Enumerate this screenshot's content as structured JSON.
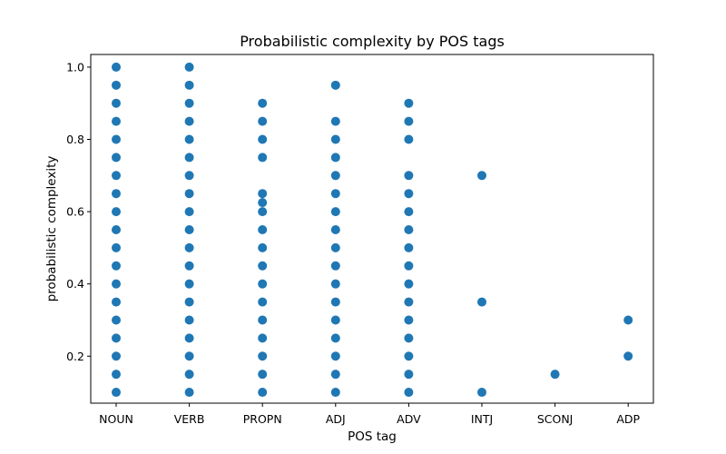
{
  "chart_data": {
    "type": "scatter",
    "title": "Probabilistic complexity by POS tags",
    "xlabel": "POS tag",
    "ylabel": "probabilistic complexity",
    "categories": [
      "NOUN",
      "VERB",
      "PROPN",
      "ADJ",
      "ADV",
      "INTJ",
      "SCONJ",
      "ADP"
    ],
    "ylim": [
      0.07,
      1.035
    ],
    "yticks": [
      "0.2",
      "0.4",
      "0.6",
      "0.8",
      "1.0"
    ],
    "grid": false,
    "color": "#1f77b4",
    "series": [
      {
        "points": [
          {
            "x": "NOUN",
            "y": 0.1
          },
          {
            "x": "NOUN",
            "y": 0.15
          },
          {
            "x": "NOUN",
            "y": 0.2
          },
          {
            "x": "NOUN",
            "y": 0.25
          },
          {
            "x": "NOUN",
            "y": 0.3
          },
          {
            "x": "NOUN",
            "y": 0.35
          },
          {
            "x": "NOUN",
            "y": 0.4
          },
          {
            "x": "NOUN",
            "y": 0.45
          },
          {
            "x": "NOUN",
            "y": 0.5
          },
          {
            "x": "NOUN",
            "y": 0.55
          },
          {
            "x": "NOUN",
            "y": 0.6
          },
          {
            "x": "NOUN",
            "y": 0.65
          },
          {
            "x": "NOUN",
            "y": 0.7
          },
          {
            "x": "NOUN",
            "y": 0.75
          },
          {
            "x": "NOUN",
            "y": 0.8
          },
          {
            "x": "NOUN",
            "y": 0.85
          },
          {
            "x": "NOUN",
            "y": 0.9
          },
          {
            "x": "NOUN",
            "y": 0.95
          },
          {
            "x": "NOUN",
            "y": 1.0
          },
          {
            "x": "VERB",
            "y": 0.1
          },
          {
            "x": "VERB",
            "y": 0.15
          },
          {
            "x": "VERB",
            "y": 0.2
          },
          {
            "x": "VERB",
            "y": 0.25
          },
          {
            "x": "VERB",
            "y": 0.3
          },
          {
            "x": "VERB",
            "y": 0.35
          },
          {
            "x": "VERB",
            "y": 0.4
          },
          {
            "x": "VERB",
            "y": 0.45
          },
          {
            "x": "VERB",
            "y": 0.5
          },
          {
            "x": "VERB",
            "y": 0.55
          },
          {
            "x": "VERB",
            "y": 0.6
          },
          {
            "x": "VERB",
            "y": 0.65
          },
          {
            "x": "VERB",
            "y": 0.7
          },
          {
            "x": "VERB",
            "y": 0.75
          },
          {
            "x": "VERB",
            "y": 0.8
          },
          {
            "x": "VERB",
            "y": 0.85
          },
          {
            "x": "VERB",
            "y": 0.9
          },
          {
            "x": "VERB",
            "y": 0.95
          },
          {
            "x": "VERB",
            "y": 1.0
          },
          {
            "x": "PROPN",
            "y": 0.1
          },
          {
            "x": "PROPN",
            "y": 0.15
          },
          {
            "x": "PROPN",
            "y": 0.2
          },
          {
            "x": "PROPN",
            "y": 0.25
          },
          {
            "x": "PROPN",
            "y": 0.3
          },
          {
            "x": "PROPN",
            "y": 0.35
          },
          {
            "x": "PROPN",
            "y": 0.4
          },
          {
            "x": "PROPN",
            "y": 0.45
          },
          {
            "x": "PROPN",
            "y": 0.5
          },
          {
            "x": "PROPN",
            "y": 0.55
          },
          {
            "x": "PROPN",
            "y": 0.6
          },
          {
            "x": "PROPN",
            "y": 0.625
          },
          {
            "x": "PROPN",
            "y": 0.65
          },
          {
            "x": "PROPN",
            "y": 0.75
          },
          {
            "x": "PROPN",
            "y": 0.8
          },
          {
            "x": "PROPN",
            "y": 0.85
          },
          {
            "x": "PROPN",
            "y": 0.9
          },
          {
            "x": "ADJ",
            "y": 0.1
          },
          {
            "x": "ADJ",
            "y": 0.15
          },
          {
            "x": "ADJ",
            "y": 0.2
          },
          {
            "x": "ADJ",
            "y": 0.25
          },
          {
            "x": "ADJ",
            "y": 0.3
          },
          {
            "x": "ADJ",
            "y": 0.35
          },
          {
            "x": "ADJ",
            "y": 0.4
          },
          {
            "x": "ADJ",
            "y": 0.45
          },
          {
            "x": "ADJ",
            "y": 0.5
          },
          {
            "x": "ADJ",
            "y": 0.55
          },
          {
            "x": "ADJ",
            "y": 0.6
          },
          {
            "x": "ADJ",
            "y": 0.65
          },
          {
            "x": "ADJ",
            "y": 0.7
          },
          {
            "x": "ADJ",
            "y": 0.75
          },
          {
            "x": "ADJ",
            "y": 0.8
          },
          {
            "x": "ADJ",
            "y": 0.85
          },
          {
            "x": "ADJ",
            "y": 0.95
          },
          {
            "x": "ADV",
            "y": 0.1
          },
          {
            "x": "ADV",
            "y": 0.15
          },
          {
            "x": "ADV",
            "y": 0.2
          },
          {
            "x": "ADV",
            "y": 0.25
          },
          {
            "x": "ADV",
            "y": 0.3
          },
          {
            "x": "ADV",
            "y": 0.35
          },
          {
            "x": "ADV",
            "y": 0.4
          },
          {
            "x": "ADV",
            "y": 0.45
          },
          {
            "x": "ADV",
            "y": 0.5
          },
          {
            "x": "ADV",
            "y": 0.55
          },
          {
            "x": "ADV",
            "y": 0.6
          },
          {
            "x": "ADV",
            "y": 0.65
          },
          {
            "x": "ADV",
            "y": 0.7
          },
          {
            "x": "ADV",
            "y": 0.8
          },
          {
            "x": "ADV",
            "y": 0.85
          },
          {
            "x": "ADV",
            "y": 0.9
          },
          {
            "x": "INTJ",
            "y": 0.1
          },
          {
            "x": "INTJ",
            "y": 0.35
          },
          {
            "x": "INTJ",
            "y": 0.7
          },
          {
            "x": "SCONJ",
            "y": 0.15
          },
          {
            "x": "ADP",
            "y": 0.2
          },
          {
            "x": "ADP",
            "y": 0.3
          }
        ]
      }
    ]
  }
}
